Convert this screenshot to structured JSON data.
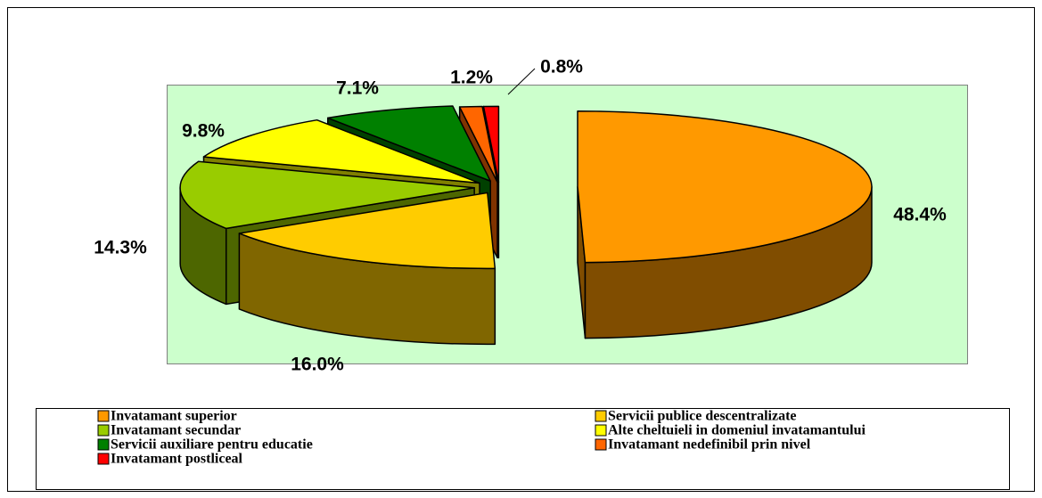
{
  "chart_data": {
    "type": "pie3d",
    "categories": [
      "Invatamant superior",
      "Servicii publice descentralizate",
      "Invatamant secundar",
      "Alte cheltuieli in domeniul invatamantului",
      "Servicii auxiliare pentru educatie",
      "Invatamant nedefinibil prin nivel",
      "Invatamant postliceal"
    ],
    "values": [
      48.4,
      16,
      14.3,
      9.8,
      7.1,
      1.2,
      0.8
    ],
    "value_labels": [
      "48.4%",
      "16.0%",
      "14.3%",
      "9.8%",
      "7.1%",
      "1.2%",
      "0.8%"
    ],
    "colors": [
      "#ff9900",
      "#ffcc00",
      "#99cc00",
      "#ffff00",
      "#008000",
      "#ff6600",
      "#ff0000"
    ]
  }
}
